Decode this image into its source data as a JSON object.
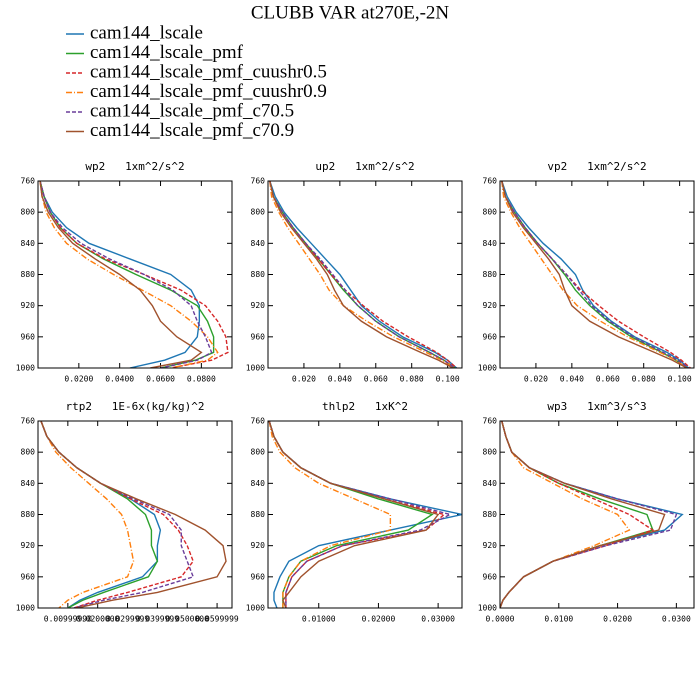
{
  "title": "CLUBB VAR at270E,-2N",
  "legend": [
    {
      "name": "cam144_lscale",
      "color": "#1f77b4",
      "dash": "solid"
    },
    {
      "name": "cam144_lscale_pmf",
      "color": "#2ca02c",
      "dash": "solid"
    },
    {
      "name": "cam144_lscale_pmf_cuushr0.5",
      "color": "#d62728",
      "dash": "dash"
    },
    {
      "name": "cam144_lscale_pmf_cuushr0.9",
      "color": "#ff7f0e",
      "dash": "dashdot"
    },
    {
      "name": "cam144_lscale_pmf_c70.5",
      "color": "#6a3d9a",
      "dash": "dash"
    },
    {
      "name": "cam144_lscale_pmf_c70.9",
      "color": "#a0522d",
      "dash": "solid"
    }
  ],
  "chart_data": [
    {
      "type": "line",
      "title": "wp2   1xm^2/s^2",
      "y": [
        760,
        780,
        800,
        820,
        840,
        860,
        880,
        900,
        920,
        940,
        960,
        980,
        990,
        1000
      ],
      "ylim": [
        760,
        1000
      ],
      "y_inverted": true,
      "yticks": [
        760,
        800,
        840,
        880,
        920,
        960,
        1000
      ],
      "xlim": [
        0,
        0.095
      ],
      "xticks": [
        {
          "value": 0.02,
          "label": "0.0200"
        },
        {
          "value": 0.04,
          "label": "0.0400"
        },
        {
          "value": 0.06,
          "label": "0.0600"
        },
        {
          "value": 0.08,
          "label": "0.0800"
        }
      ],
      "series": [
        {
          "values": [
            0.001,
            0.003,
            0.007,
            0.014,
            0.025,
            0.045,
            0.065,
            0.075,
            0.079,
            0.079,
            0.078,
            0.072,
            0.062,
            0.045
          ]
        },
        {
          "values": [
            0.001,
            0.003,
            0.006,
            0.011,
            0.019,
            0.032,
            0.048,
            0.065,
            0.078,
            0.083,
            0.086,
            0.086,
            0.077,
            0.06
          ]
        },
        {
          "values": [
            0.001,
            0.003,
            0.006,
            0.011,
            0.019,
            0.033,
            0.052,
            0.07,
            0.082,
            0.088,
            0.092,
            0.093,
            0.085,
            0.065
          ]
        },
        {
          "values": [
            0.001,
            0.002,
            0.004,
            0.008,
            0.014,
            0.024,
            0.037,
            0.051,
            0.065,
            0.075,
            0.083,
            0.088,
            0.083,
            0.065
          ]
        },
        {
          "values": [
            0.001,
            0.003,
            0.006,
            0.012,
            0.021,
            0.035,
            0.052,
            0.066,
            0.075,
            0.078,
            0.082,
            0.085,
            0.078,
            0.06
          ]
        },
        {
          "values": [
            0.001,
            0.002,
            0.005,
            0.01,
            0.017,
            0.028,
            0.04,
            0.05,
            0.056,
            0.06,
            0.068,
            0.08,
            0.075,
            0.055
          ]
        }
      ]
    },
    {
      "type": "line",
      "title": "up2   1xm^2/s^2",
      "y": [
        760,
        780,
        800,
        820,
        840,
        860,
        880,
        900,
        920,
        940,
        960,
        980,
        990,
        1000
      ],
      "ylim": [
        760,
        1000
      ],
      "y_inverted": true,
      "yticks": [
        760,
        800,
        840,
        880,
        920,
        960,
        1000
      ],
      "xlim": [
        0,
        0.108
      ],
      "xticks": [
        {
          "value": 0.02,
          "label": "0.020"
        },
        {
          "value": 0.04,
          "label": "0.040"
        },
        {
          "value": 0.06,
          "label": "0.060"
        },
        {
          "value": 0.08,
          "label": "0.080"
        },
        {
          "value": 0.1,
          "label": "0.100"
        }
      ],
      "series": [
        {
          "values": [
            0.001,
            0.004,
            0.009,
            0.016,
            0.024,
            0.032,
            0.04,
            0.046,
            0.052,
            0.062,
            0.075,
            0.093,
            0.1,
            0.105
          ]
        },
        {
          "values": [
            0.001,
            0.003,
            0.008,
            0.014,
            0.021,
            0.028,
            0.035,
            0.042,
            0.05,
            0.06,
            0.073,
            0.09,
            0.098,
            0.104
          ]
        },
        {
          "values": [
            0.001,
            0.003,
            0.008,
            0.014,
            0.021,
            0.028,
            0.035,
            0.043,
            0.053,
            0.064,
            0.078,
            0.094,
            0.1,
            0.105
          ]
        },
        {
          "values": [
            0.001,
            0.002,
            0.006,
            0.011,
            0.017,
            0.023,
            0.029,
            0.034,
            0.042,
            0.055,
            0.07,
            0.088,
            0.097,
            0.104
          ]
        },
        {
          "values": [
            0.001,
            0.003,
            0.008,
            0.014,
            0.021,
            0.029,
            0.036,
            0.043,
            0.05,
            0.06,
            0.073,
            0.09,
            0.098,
            0.104
          ]
        },
        {
          "values": [
            0.001,
            0.003,
            0.007,
            0.013,
            0.02,
            0.027,
            0.033,
            0.037,
            0.042,
            0.052,
            0.066,
            0.085,
            0.095,
            0.103
          ]
        }
      ]
    },
    {
      "type": "line",
      "title": "vp2   1xm^2/s^2",
      "y": [
        760,
        780,
        800,
        820,
        840,
        860,
        880,
        900,
        920,
        940,
        960,
        980,
        990,
        1000
      ],
      "ylim": [
        760,
        1000
      ],
      "y_inverted": true,
      "yticks": [
        760,
        800,
        840,
        880,
        920,
        960,
        1000
      ],
      "xlim": [
        0,
        0.108
      ],
      "xticks": [
        {
          "value": 0.02,
          "label": "0.020"
        },
        {
          "value": 0.04,
          "label": "0.040"
        },
        {
          "value": 0.06,
          "label": "0.060"
        },
        {
          "value": 0.08,
          "label": "0.080"
        },
        {
          "value": 0.1,
          "label": "0.100"
        }
      ],
      "series": [
        {
          "values": [
            0.001,
            0.004,
            0.009,
            0.016,
            0.024,
            0.034,
            0.042,
            0.046,
            0.052,
            0.062,
            0.075,
            0.093,
            0.1,
            0.105
          ]
        },
        {
          "values": [
            0.001,
            0.003,
            0.008,
            0.014,
            0.021,
            0.029,
            0.036,
            0.042,
            0.05,
            0.06,
            0.073,
            0.09,
            0.098,
            0.104
          ]
        },
        {
          "values": [
            0.001,
            0.003,
            0.008,
            0.014,
            0.021,
            0.029,
            0.037,
            0.045,
            0.055,
            0.066,
            0.08,
            0.095,
            0.101,
            0.106
          ]
        },
        {
          "values": [
            0.001,
            0.002,
            0.006,
            0.011,
            0.017,
            0.023,
            0.029,
            0.035,
            0.043,
            0.056,
            0.071,
            0.089,
            0.098,
            0.104
          ]
        },
        {
          "values": [
            0.001,
            0.003,
            0.008,
            0.014,
            0.021,
            0.029,
            0.037,
            0.044,
            0.051,
            0.061,
            0.074,
            0.091,
            0.099,
            0.105
          ]
        },
        {
          "values": [
            0.001,
            0.003,
            0.007,
            0.013,
            0.02,
            0.027,
            0.033,
            0.036,
            0.04,
            0.05,
            0.066,
            0.086,
            0.096,
            0.104
          ]
        }
      ]
    },
    {
      "type": "line",
      "title": "rtp2   1E-6x(kg/kg)^2",
      "y": [
        760,
        780,
        800,
        820,
        840,
        860,
        880,
        900,
        920,
        940,
        960,
        980,
        990,
        1000
      ],
      "ylim": [
        760,
        1000
      ],
      "y_inverted": true,
      "yticks": [
        760,
        800,
        840,
        880,
        920,
        960,
        1000
      ],
      "xlim": [
        0,
        0.065
      ],
      "xticks": [
        {
          "value": 0.01,
          "label": "0.00999990"
        },
        {
          "value": 0.02,
          "label": "0.0200000"
        },
        {
          "value": 0.03,
          "label": "0.0299999"
        },
        {
          "value": 0.04,
          "label": "0.0399999"
        },
        {
          "value": 0.05,
          "label": "0.0500000"
        },
        {
          "value": 0.06,
          "label": "0.0599999"
        }
      ],
      "series": [
        {
          "values": [
            0.001,
            0.003,
            0.007,
            0.013,
            0.021,
            0.031,
            0.039,
            0.041,
            0.04,
            0.04,
            0.035,
            0.02,
            0.014,
            0.01
          ]
        },
        {
          "values": [
            0.001,
            0.003,
            0.007,
            0.013,
            0.021,
            0.03,
            0.036,
            0.038,
            0.038,
            0.04,
            0.037,
            0.022,
            0.015,
            0.01
          ]
        },
        {
          "values": [
            0.001,
            0.003,
            0.007,
            0.013,
            0.021,
            0.031,
            0.042,
            0.047,
            0.05,
            0.052,
            0.048,
            0.03,
            0.02,
            0.012
          ]
        },
        {
          "values": [
            0.001,
            0.003,
            0.006,
            0.011,
            0.017,
            0.023,
            0.028,
            0.03,
            0.031,
            0.032,
            0.03,
            0.015,
            0.01,
            0.007
          ]
        },
        {
          "values": [
            0.001,
            0.003,
            0.007,
            0.013,
            0.021,
            0.032,
            0.044,
            0.048,
            0.048,
            0.05,
            0.052,
            0.035,
            0.022,
            0.012
          ]
        },
        {
          "values": [
            0.001,
            0.003,
            0.007,
            0.013,
            0.021,
            0.033,
            0.046,
            0.056,
            0.062,
            0.063,
            0.06,
            0.04,
            0.025,
            0.013
          ]
        }
      ]
    },
    {
      "type": "line",
      "title": "thlp2   1xK^2",
      "y": [
        760,
        780,
        800,
        820,
        840,
        860,
        880,
        900,
        920,
        940,
        960,
        980,
        990,
        1000
      ],
      "ylim": [
        760,
        1000
      ],
      "y_inverted": true,
      "yticks": [
        760,
        800,
        840,
        880,
        920,
        960,
        1000
      ],
      "xlim": [
        0.0015,
        0.034
      ],
      "xticks": [
        {
          "value": 0.01,
          "label": "0.01000"
        },
        {
          "value": 0.02,
          "label": "0.02000"
        },
        {
          "value": 0.03,
          "label": "0.03000"
        }
      ],
      "series": [
        {
          "values": [
            0.0017,
            0.0025,
            0.004,
            0.007,
            0.012,
            0.022,
            0.034,
            0.022,
            0.01,
            0.005,
            0.0035,
            0.0025,
            0.0025,
            0.003
          ]
        },
        {
          "values": [
            0.0017,
            0.0025,
            0.004,
            0.007,
            0.012,
            0.02,
            0.029,
            0.025,
            0.013,
            0.007,
            0.005,
            0.004,
            0.004,
            0.004
          ]
        },
        {
          "values": [
            0.0017,
            0.0025,
            0.004,
            0.007,
            0.012,
            0.021,
            0.031,
            0.028,
            0.014,
            0.008,
            0.0055,
            0.0045,
            0.0045,
            0.0045
          ]
        },
        {
          "values": [
            0.0017,
            0.0022,
            0.0035,
            0.006,
            0.01,
            0.016,
            0.022,
            0.022,
            0.012,
            0.007,
            0.005,
            0.004,
            0.004,
            0.004
          ]
        },
        {
          "values": [
            0.0017,
            0.0025,
            0.004,
            0.007,
            0.012,
            0.022,
            0.032,
            0.027,
            0.014,
            0.008,
            0.0055,
            0.0045,
            0.0045,
            0.0045
          ]
        },
        {
          "values": [
            0.0017,
            0.0025,
            0.004,
            0.007,
            0.012,
            0.021,
            0.03,
            0.028,
            0.016,
            0.01,
            0.007,
            0.005,
            0.004,
            0.0045
          ]
        }
      ]
    },
    {
      "type": "line",
      "title": "wp3   1xm^3/s^3",
      "y": [
        760,
        780,
        800,
        820,
        840,
        860,
        880,
        900,
        920,
        940,
        960,
        980,
        990,
        1000
      ],
      "ylim": [
        760,
        1000
      ],
      "y_inverted": true,
      "yticks": [
        760,
        800,
        840,
        880,
        920,
        960,
        1000
      ],
      "xlim": [
        0,
        0.033
      ],
      "xticks": [
        {
          "value": 0,
          "label": "0.0000"
        },
        {
          "value": 0.01,
          "label": "0.0100"
        },
        {
          "value": 0.02,
          "label": "0.0200"
        },
        {
          "value": 0.03,
          "label": "0.0300"
        }
      ],
      "series": [
        {
          "values": [
            0.0003,
            0.001,
            0.002,
            0.005,
            0.011,
            0.02,
            0.031,
            0.028,
            0.017,
            0.009,
            0.004,
            0.0015,
            0.0005,
            0
          ]
        },
        {
          "values": [
            0.0003,
            0.001,
            0.002,
            0.005,
            0.01,
            0.017,
            0.025,
            0.026,
            0.017,
            0.009,
            0.004,
            0.0015,
            0.0005,
            0
          ]
        },
        {
          "values": [
            0.0003,
            0.001,
            0.002,
            0.005,
            0.01,
            0.016,
            0.022,
            0.026,
            0.018,
            0.009,
            0.004,
            0.0015,
            0.0005,
            0
          ]
        },
        {
          "values": [
            0.0003,
            0.001,
            0.002,
            0.004,
            0.009,
            0.014,
            0.02,
            0.022,
            0.016,
            0.009,
            0.004,
            0.0015,
            0.0005,
            0
          ]
        },
        {
          "values": [
            0.0003,
            0.001,
            0.002,
            0.005,
            0.011,
            0.02,
            0.03,
            0.029,
            0.018,
            0.009,
            0.004,
            0.0015,
            0.0005,
            0
          ]
        },
        {
          "values": [
            0.0003,
            0.001,
            0.002,
            0.005,
            0.011,
            0.019,
            0.028,
            0.027,
            0.017,
            0.009,
            0.004,
            0.0015,
            0.0005,
            0
          ]
        }
      ]
    }
  ]
}
